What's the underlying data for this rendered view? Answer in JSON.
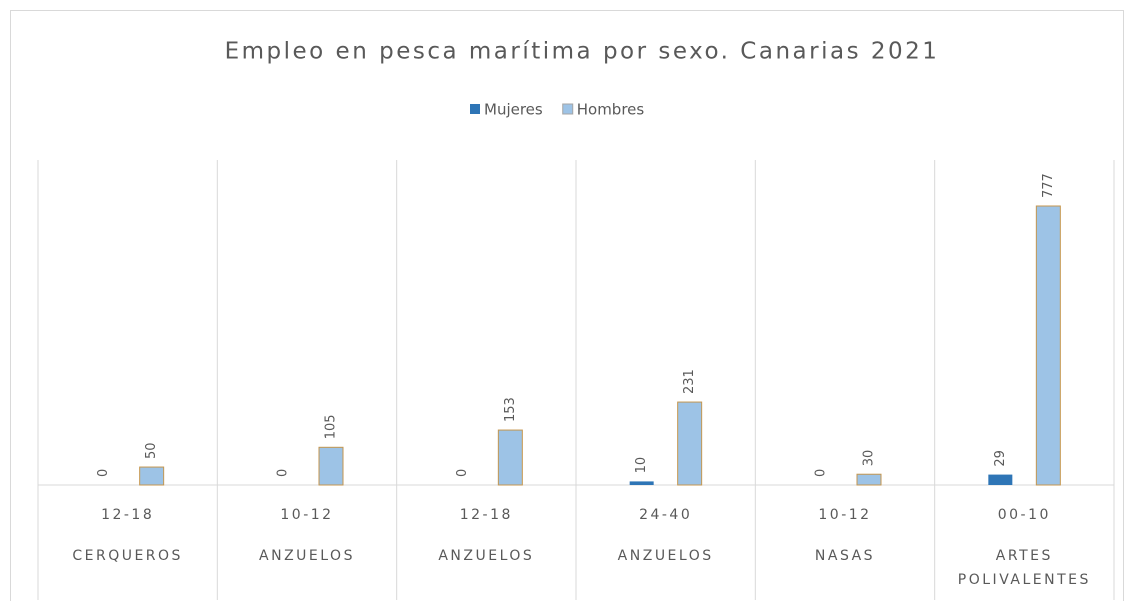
{
  "chart_data": {
    "type": "bar",
    "title": "Empleo en pesca marítima por sexo. Canarias 2021",
    "categories": [
      "12-18",
      "10-12",
      "12-18",
      "24-40",
      "10-12",
      "00-10"
    ],
    "groups": [
      "CERQUEROS",
      "ANZUELOS",
      "ANZUELOS",
      "ANZUELOS",
      "NASAS",
      "ARTES POLIVALENTES"
    ],
    "series": [
      {
        "name": "Mujeres",
        "color": "#2e75b6",
        "values": [
          0,
          0,
          0,
          10,
          0,
          29
        ]
      },
      {
        "name": "Hombres",
        "color": "#9dc3e6",
        "values": [
          50,
          105,
          153,
          231,
          30,
          777
        ]
      }
    ],
    "legend": "top"
  }
}
